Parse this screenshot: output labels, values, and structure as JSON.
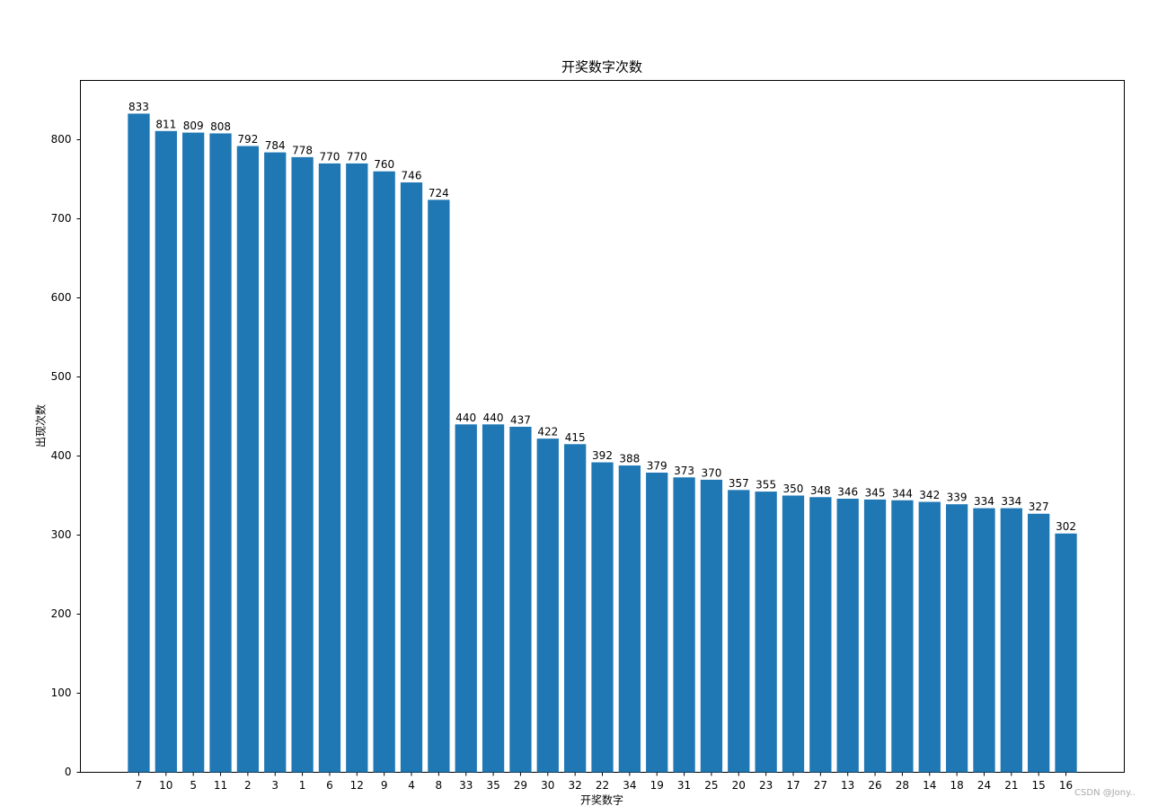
{
  "chart_data": {
    "type": "bar",
    "title": "开奖数字次数",
    "x_label": "开奖数字",
    "y_label": "出现次数",
    "categories": [
      "7",
      "10",
      "5",
      "11",
      "2",
      "3",
      "1",
      "6",
      "12",
      "9",
      "4",
      "8",
      "33",
      "35",
      "29",
      "30",
      "32",
      "22",
      "34",
      "19",
      "31",
      "25",
      "20",
      "23",
      "17",
      "27",
      "13",
      "26",
      "28",
      "14",
      "18",
      "24",
      "21",
      "15",
      "16"
    ],
    "values": [
      833,
      811,
      809,
      808,
      792,
      784,
      778,
      770,
      770,
      760,
      746,
      724,
      440,
      440,
      437,
      422,
      415,
      392,
      388,
      379,
      373,
      370,
      357,
      355,
      350,
      348,
      346,
      345,
      344,
      342,
      339,
      334,
      334,
      327,
      302
    ],
    "color": "#1f77b4",
    "ylim": [
      0,
      875
    ],
    "yticks": [
      0,
      100,
      200,
      300,
      400,
      500,
      600,
      700,
      800
    ],
    "grid": false,
    "watermark": "CSDN @Jony.."
  }
}
